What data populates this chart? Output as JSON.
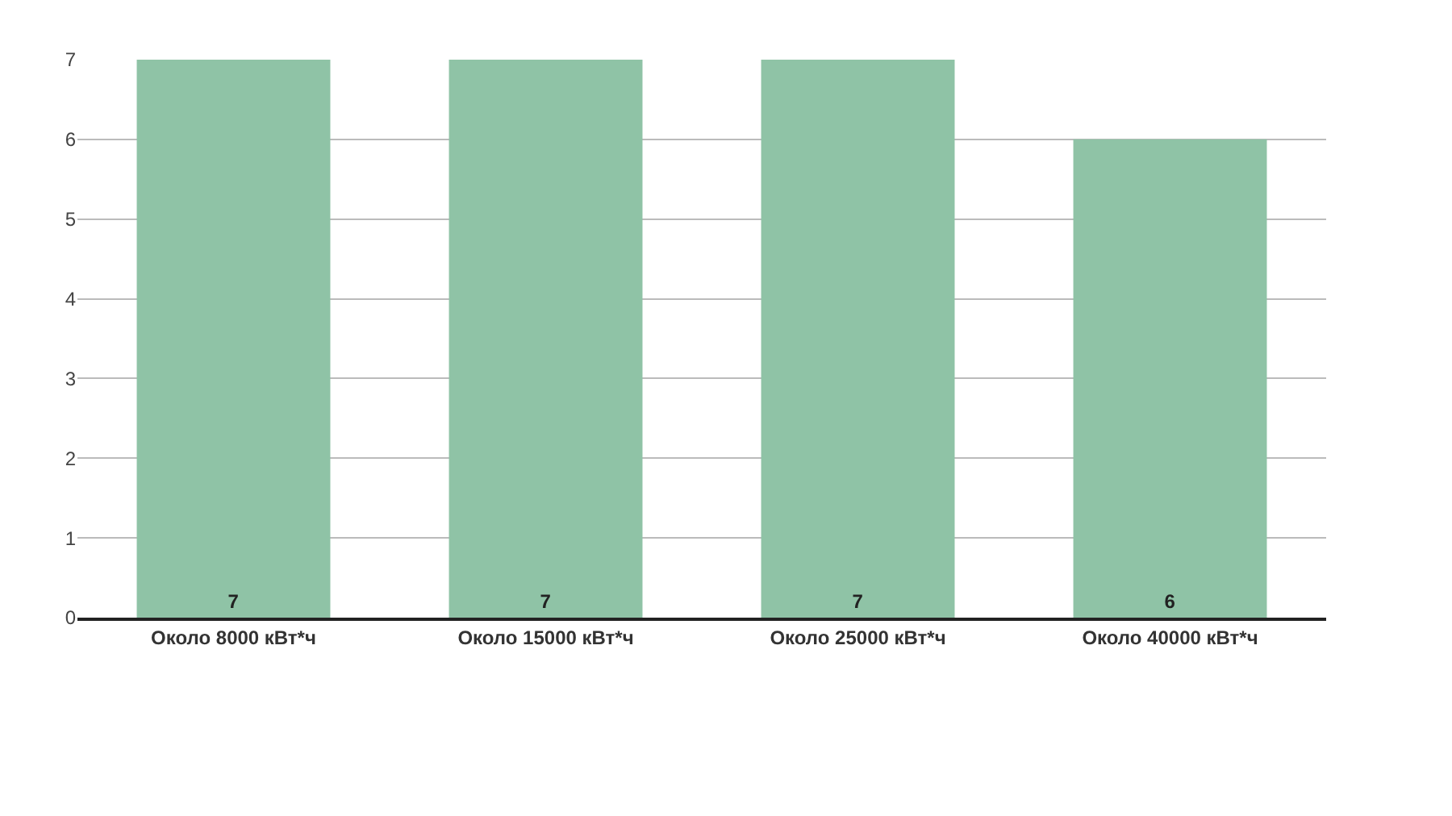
{
  "chart_data": {
    "type": "bar",
    "categories": [
      "Около 8000 кВт*ч",
      "Около 15000 кВт*ч",
      "Около 25000 кВт*ч",
      "Около 40000 кВт*ч"
    ],
    "values": [
      7,
      7,
      7,
      6
    ],
    "color": "#8fc3a6",
    "ylim": [
      0,
      7
    ],
    "yticks": [
      0,
      1,
      2,
      3,
      4,
      5,
      6,
      7
    ],
    "grid": "y",
    "data_labels": true
  }
}
